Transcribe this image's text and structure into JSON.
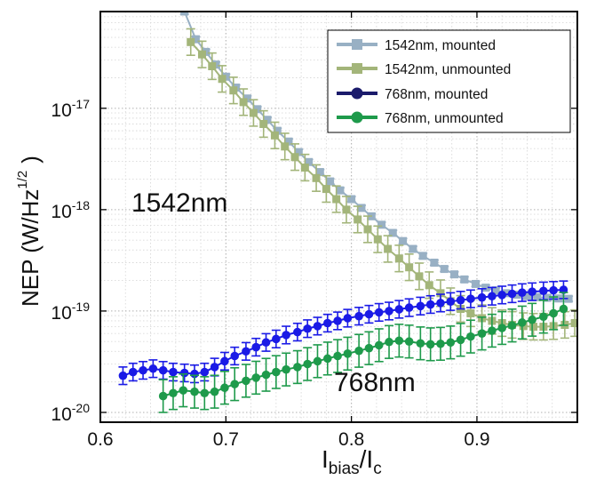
{
  "chart_data": {
    "type": "scatter",
    "title": "",
    "xlabel": {
      "main": "I",
      "sub1": "bias",
      "slash": "/I",
      "sub2": "c"
    },
    "ylabel": {
      "main": "NEP (W/Hz",
      "sup": "1/2",
      "close": ")"
    },
    "xlim": [
      0.6,
      0.98
    ],
    "ylim": [
      8e-21,
      9e-17
    ],
    "yscale": "log",
    "grid": true,
    "legend_position": "top-right",
    "x_ticks": [
      {
        "value": 0.6,
        "label": "0.6"
      },
      {
        "value": 0.7,
        "label": "0.7"
      },
      {
        "value": 0.8,
        "label": "0.8"
      },
      {
        "value": 0.9,
        "label": "0.9"
      }
    ],
    "y_ticks": [
      {
        "value": 1e-20,
        "base": "10",
        "exp": "-20"
      },
      {
        "value": 1e-19,
        "base": "10",
        "exp": "-19"
      },
      {
        "value": 1e-18,
        "base": "10",
        "exp": "-18"
      },
      {
        "value": 1e-17,
        "base": "10",
        "exp": "-17"
      }
    ],
    "annotations": [
      {
        "text": "1542nm",
        "x": 0.645,
        "y": 1.1e-18
      },
      {
        "text": "768nm",
        "x": 0.805,
        "y": 1.35e-20
      }
    ],
    "series": [
      {
        "name": "1542nm, mounted",
        "color": "#98b0c4",
        "marker": "square",
        "x": [
          0.667,
          0.676,
          0.684,
          0.692,
          0.7,
          0.708,
          0.717,
          0.725,
          0.733,
          0.741,
          0.75,
          0.758,
          0.766,
          0.775,
          0.783,
          0.791,
          0.8,
          0.808,
          0.816,
          0.824,
          0.833,
          0.841,
          0.849,
          0.857,
          0.866,
          0.874,
          0.882,
          0.89,
          0.899,
          0.907,
          0.915,
          0.923,
          0.932,
          0.94,
          0.948,
          0.956,
          0.965,
          0.973
        ],
        "y": [
          9e-17,
          4.8e-17,
          3.6e-17,
          2.7e-17,
          2.05e-17,
          1.6e-17,
          1.25e-17,
          9.8e-18,
          7.7e-18,
          6e-18,
          4.7e-18,
          3.7e-18,
          2.95e-18,
          2.35e-18,
          1.9e-18,
          1.55e-18,
          1.27e-18,
          1.04e-18,
          8.6e-19,
          7.1e-19,
          5.9e-19,
          4.9e-19,
          4.1e-19,
          3.5e-19,
          3e-19,
          2.6e-19,
          2.3e-19,
          2.05e-19,
          1.85e-19,
          1.7e-19,
          1.6e-19,
          1.5e-19,
          1.45e-19,
          1.4e-19,
          1.37e-19,
          1.35e-19,
          1.33e-19,
          1.32e-19
        ],
        "err_factor": 1.06
      },
      {
        "name": "1542nm, unmounted",
        "color": "#a3b57a",
        "marker": "square",
        "x": [
          0.672,
          0.681,
          0.689,
          0.697,
          0.706,
          0.714,
          0.722,
          0.73,
          0.739,
          0.747,
          0.755,
          0.763,
          0.772,
          0.78,
          0.788,
          0.796,
          0.805,
          0.813,
          0.821,
          0.829,
          0.838,
          0.846,
          0.854,
          0.862,
          0.871,
          0.879,
          0.887,
          0.895,
          0.904,
          0.912,
          0.92,
          0.928,
          0.937,
          0.945,
          0.953,
          0.961,
          0.97,
          0.978
        ],
        "y": [
          4.5e-17,
          3.4e-17,
          2.6e-17,
          1.95e-17,
          1.5e-17,
          1.15e-17,
          9e-18,
          7e-18,
          5.4e-18,
          4.2e-18,
          3.3e-18,
          2.6e-18,
          2.05e-18,
          1.6e-18,
          1.27e-18,
          1e-18,
          8e-19,
          6.4e-19,
          5.1e-19,
          4.1e-19,
          3.3e-19,
          2.7e-19,
          2.2e-19,
          1.8e-19,
          1.5e-19,
          1.25e-19,
          1.05e-19,
          9.5e-20,
          8.5e-20,
          8e-20,
          7.6e-20,
          7.3e-20,
          7.1e-20,
          7e-20,
          7e-20,
          7.1e-20,
          7.3e-20,
          7.6e-20
        ],
        "err_factor": 1.35
      },
      {
        "name": "768nm, mounted",
        "color": "#1a1ae6",
        "marker": "circle",
        "x": [
          0.618,
          0.626,
          0.634,
          0.642,
          0.65,
          0.658,
          0.667,
          0.675,
          0.683,
          0.691,
          0.699,
          0.707,
          0.716,
          0.724,
          0.732,
          0.74,
          0.748,
          0.757,
          0.765,
          0.773,
          0.781,
          0.789,
          0.797,
          0.806,
          0.814,
          0.822,
          0.83,
          0.838,
          0.846,
          0.855,
          0.863,
          0.871,
          0.879,
          0.887,
          0.895,
          0.904,
          0.912,
          0.92,
          0.928,
          0.936,
          0.944,
          0.953,
          0.961,
          0.969
        ],
        "y": [
          2.3e-20,
          2.5e-20,
          2.6e-20,
          2.7e-20,
          2.6e-20,
          2.5e-20,
          2.45e-20,
          2.4e-20,
          2.5e-20,
          2.8e-20,
          3.2e-20,
          3.6e-20,
          4e-20,
          4.4e-20,
          4.9e-20,
          5.3e-20,
          5.8e-20,
          6.2e-20,
          6.7e-20,
          7.1e-20,
          7.6e-20,
          8e-20,
          8.5e-20,
          8.9e-20,
          9.3e-20,
          9.7e-20,
          1e-19,
          1.04e-19,
          1.08e-19,
          1.12e-19,
          1.16e-19,
          1.2e-19,
          1.24e-19,
          1.28e-19,
          1.32e-19,
          1.36e-19,
          1.4e-19,
          1.44e-19,
          1.48e-19,
          1.52e-19,
          1.55e-19,
          1.58e-19,
          1.6e-19,
          1.62e-19
        ],
        "err_factor": 1.22
      },
      {
        "name": "768nm, unmounted",
        "color": "#1e9a4b",
        "marker": "circle",
        "x": [
          0.65,
          0.658,
          0.666,
          0.675,
          0.683,
          0.691,
          0.699,
          0.707,
          0.716,
          0.724,
          0.732,
          0.74,
          0.748,
          0.757,
          0.765,
          0.773,
          0.781,
          0.789,
          0.797,
          0.806,
          0.814,
          0.822,
          0.83,
          0.838,
          0.846,
          0.855,
          0.863,
          0.871,
          0.879,
          0.887,
          0.895,
          0.904,
          0.912,
          0.92,
          0.928,
          0.936,
          0.944,
          0.953,
          0.961,
          0.969
        ],
        "y": [
          1.45e-20,
          1.55e-20,
          1.65e-20,
          1.6e-20,
          1.55e-20,
          1.6e-20,
          1.75e-20,
          1.9e-20,
          2.05e-20,
          2.2e-20,
          2.35e-20,
          2.5e-20,
          2.65e-20,
          2.8e-20,
          3e-20,
          3.2e-20,
          3.4e-20,
          3.6e-20,
          3.8e-20,
          4.05e-20,
          4.3e-20,
          4.6e-20,
          4.95e-20,
          5.1e-20,
          5e-20,
          4.8e-20,
          4.7e-20,
          4.75e-20,
          4.9e-20,
          5.2e-20,
          5.6e-20,
          6e-20,
          6.4e-20,
          6.8e-20,
          7.2e-20,
          7.7e-20,
          8.2e-20,
          8.8e-20,
          9.5e-20,
          1.05e-19
        ],
        "err_factor": 1.45
      }
    ]
  }
}
